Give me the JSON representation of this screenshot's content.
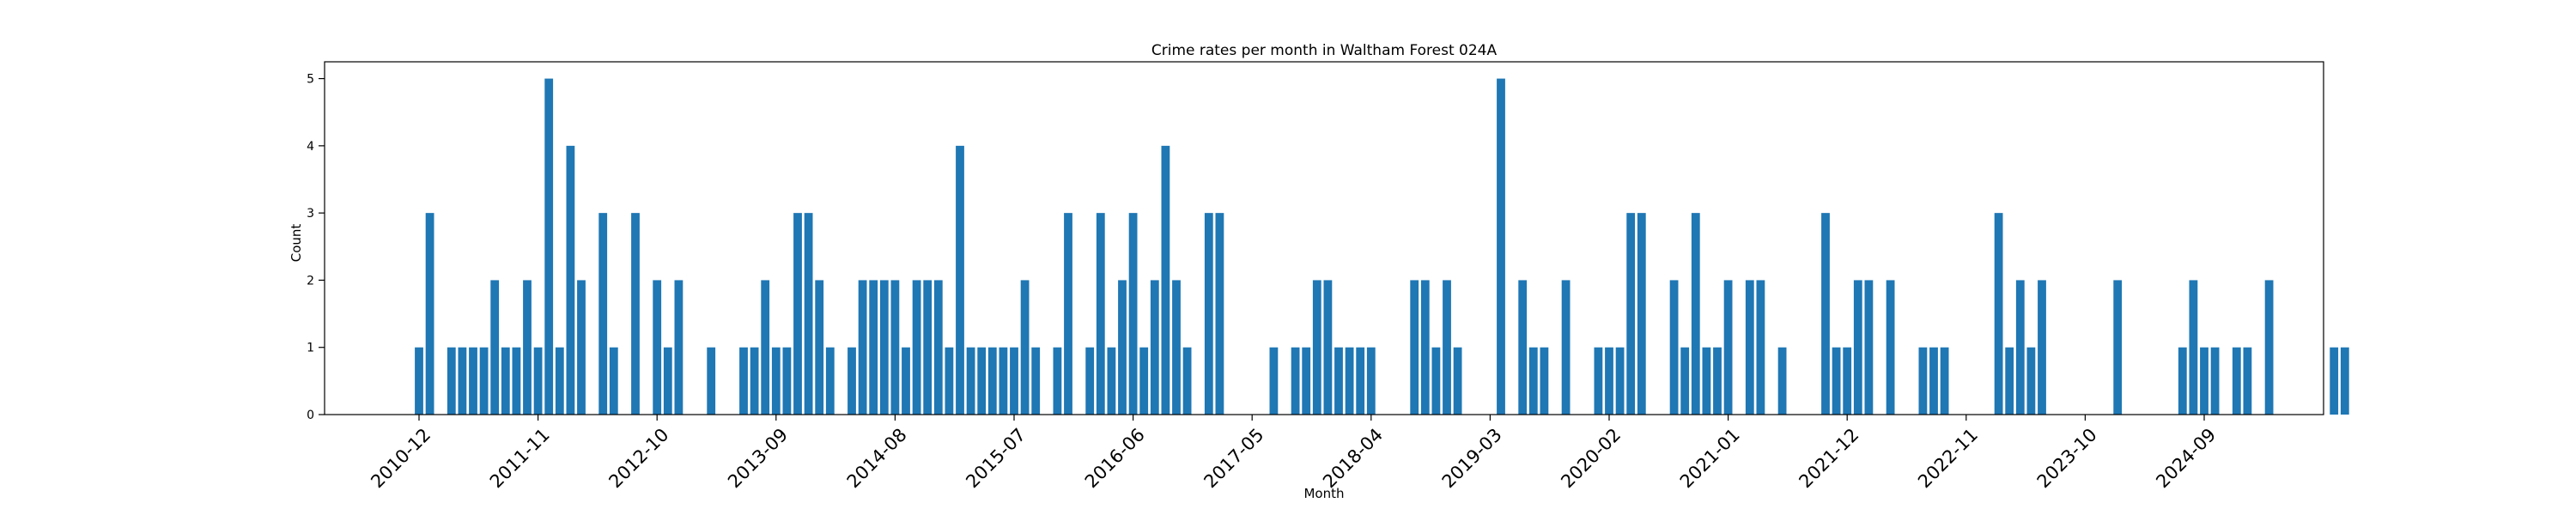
{
  "chart_data": {
    "type": "bar",
    "title": "Crime rates per month in Waltham Forest 024A",
    "xlabel": "Month",
    "ylabel": "Count",
    "ylim": [
      0,
      5.25
    ],
    "yticks": [
      0,
      1,
      2,
      3,
      4,
      5
    ],
    "start_month": "2010-12",
    "xtick_labels": [
      "2010-12",
      "2011-11",
      "2012-10",
      "2013-09",
      "2014-08",
      "2015-07",
      "2016-06",
      "2017-05",
      "2018-04",
      "2019-03",
      "2020-02",
      "2021-01",
      "2021-12",
      "2022-11",
      "2023-10",
      "2024-09"
    ],
    "color": "#1f77b4",
    "values": [
      1,
      3,
      0,
      1,
      1,
      1,
      1,
      2,
      1,
      1,
      2,
      1,
      5,
      1,
      4,
      2,
      0,
      3,
      1,
      0,
      3,
      0,
      2,
      1,
      2,
      0,
      0,
      1,
      0,
      0,
      1,
      1,
      2,
      1,
      1,
      3,
      3,
      2,
      1,
      0,
      1,
      2,
      2,
      2,
      2,
      1,
      2,
      2,
      2,
      1,
      4,
      1,
      1,
      1,
      1,
      1,
      2,
      1,
      0,
      1,
      3,
      0,
      1,
      3,
      1,
      2,
      3,
      1,
      2,
      4,
      2,
      1,
      0,
      3,
      3,
      0,
      0,
      0,
      0,
      1,
      0,
      1,
      1,
      2,
      2,
      1,
      1,
      1,
      1,
      0,
      0,
      0,
      2,
      2,
      1,
      2,
      1,
      0,
      0,
      0,
      5,
      0,
      2,
      1,
      1,
      0,
      2,
      0,
      0,
      1,
      1,
      1,
      3,
      3,
      0,
      0,
      2,
      1,
      3,
      1,
      1,
      2,
      0,
      2,
      2,
      0,
      1,
      0,
      0,
      0,
      3,
      1,
      1,
      2,
      2,
      0,
      2,
      0,
      0,
      1,
      1,
      1,
      0,
      0,
      0,
      0,
      3,
      1,
      2,
      1,
      2,
      0,
      0,
      0,
      0,
      0,
      0,
      2,
      0,
      0,
      0,
      0,
      0,
      1,
      2,
      1,
      1,
      0,
      1,
      1,
      0,
      2,
      0,
      0,
      0,
      0,
      0,
      1,
      1
    ]
  }
}
